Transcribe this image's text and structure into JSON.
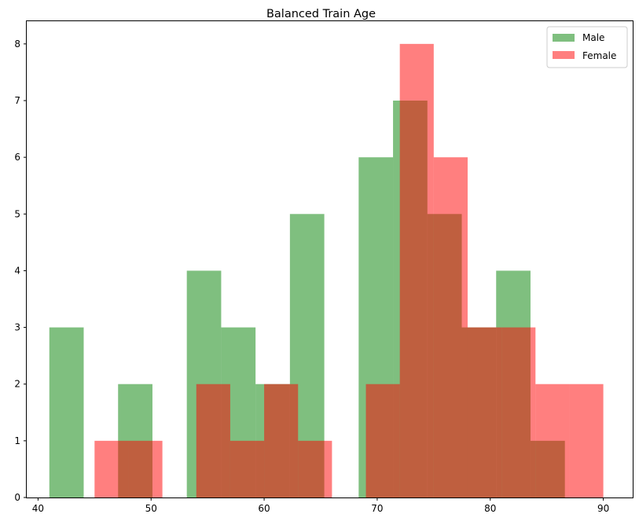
{
  "chart_data": {
    "type": "histogram",
    "title": "Balanced Train Age",
    "xlabel": "",
    "ylabel": "",
    "xlim": [
      39,
      92.6
    ],
    "ylim": [
      0,
      8.4
    ],
    "xticks": [
      40,
      50,
      60,
      70,
      80,
      90
    ],
    "yticks": [
      0,
      1,
      2,
      3,
      4,
      5,
      6,
      7,
      8
    ],
    "legend_position": "top-right",
    "series": [
      {
        "name": "Male",
        "color": "#008000",
        "opacity": 0.5,
        "bin_edges": [
          41.0,
          44.04,
          47.08,
          50.12,
          53.16,
          56.2,
          59.24,
          62.28,
          65.32,
          68.36,
          71.4,
          74.44,
          77.48,
          80.52,
          83.56,
          86.6,
          89.64
        ],
        "counts": [
          3,
          0,
          2,
          0,
          4,
          3,
          2,
          5,
          0,
          6,
          7,
          5,
          3,
          4,
          1,
          0
        ]
      },
      {
        "name": "Female",
        "color": "#ff0000",
        "opacity": 0.5,
        "bin_edges": [
          45.0,
          48.0,
          51.0,
          54.0,
          57.0,
          60.0,
          63.0,
          66.0,
          69.0,
          72.0,
          75.0,
          78.0,
          81.0,
          84.0,
          87.0,
          90.0
        ],
        "counts": [
          1,
          1,
          0,
          2,
          1,
          2,
          1,
          0,
          2,
          8,
          6,
          3,
          3,
          2,
          2
        ]
      }
    ]
  }
}
